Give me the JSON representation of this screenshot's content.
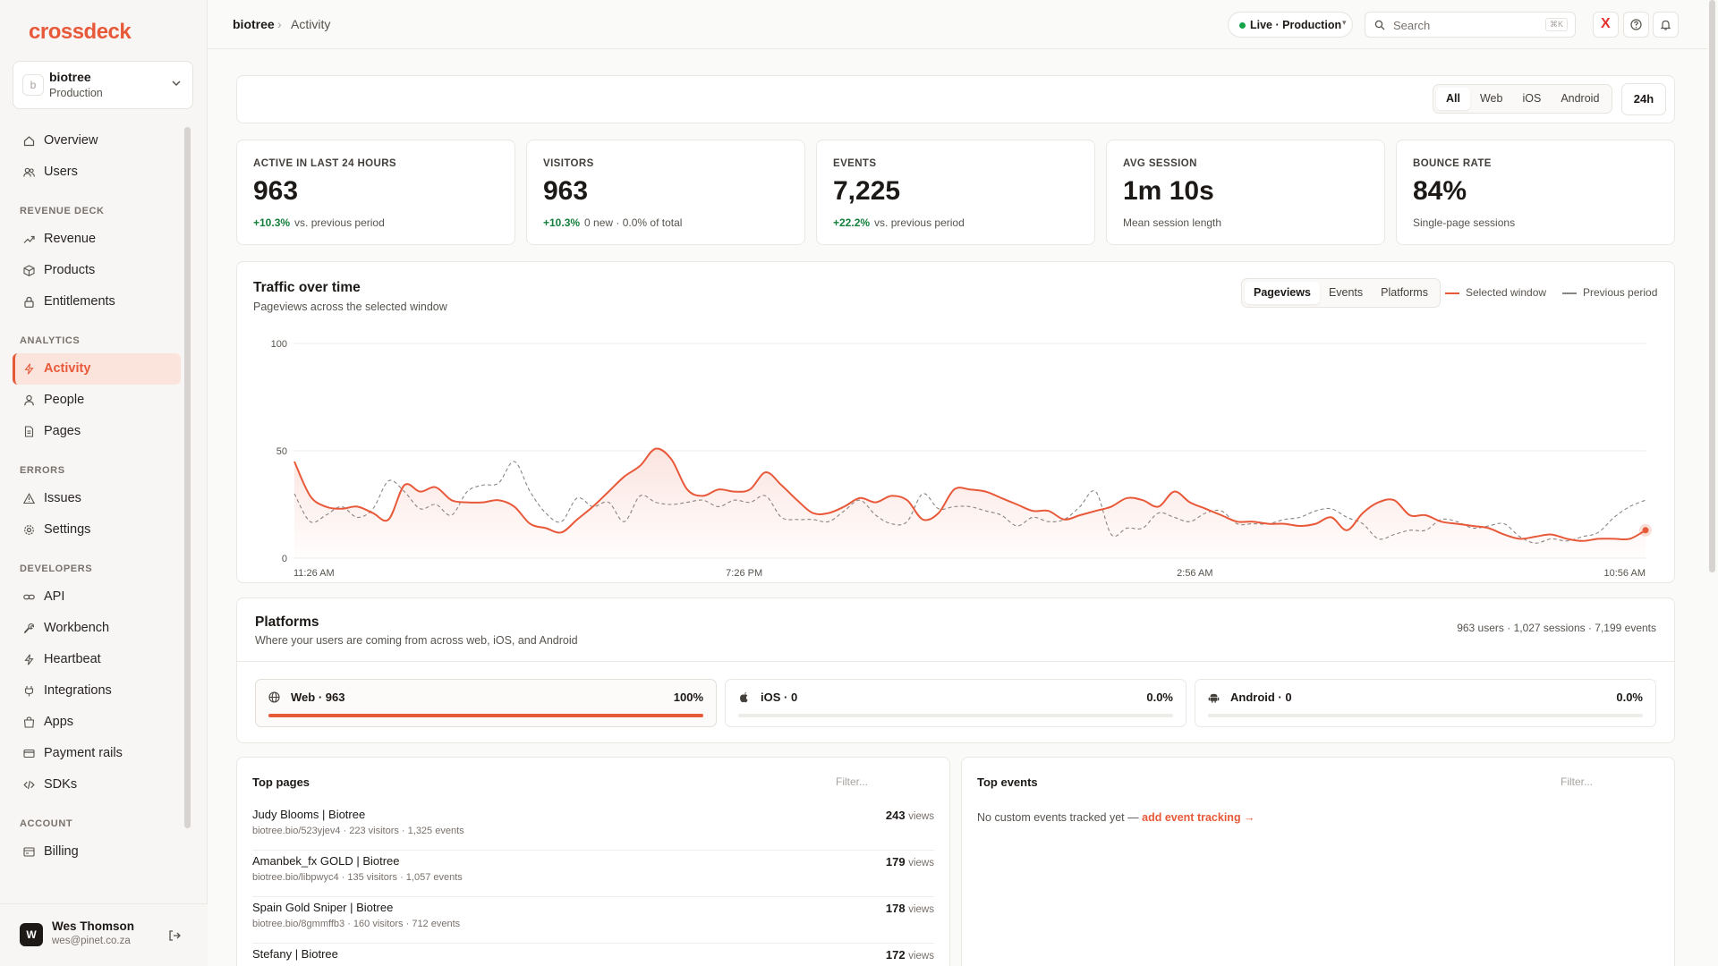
{
  "brand": {
    "name": "crossdeck",
    "accent": "#e8593a"
  },
  "workspace": {
    "avatar": "b",
    "name": "biotree",
    "env": "Production"
  },
  "sidebar": {
    "items_main": [
      {
        "label": "Overview",
        "icon": "home-icon"
      },
      {
        "label": "Users",
        "icon": "users-icon"
      }
    ],
    "sections": [
      {
        "title": "REVENUE DECK",
        "items": [
          {
            "label": "Revenue",
            "icon": "trend-icon"
          },
          {
            "label": "Products",
            "icon": "box-icon"
          },
          {
            "label": "Entitlements",
            "icon": "lock-icon"
          }
        ]
      },
      {
        "title": "ANALYTICS",
        "items": [
          {
            "label": "Activity",
            "icon": "bolt-icon",
            "active": true
          },
          {
            "label": "People",
            "icon": "person-icon"
          },
          {
            "label": "Pages",
            "icon": "file-icon"
          }
        ]
      },
      {
        "title": "ERRORS",
        "items": [
          {
            "label": "Issues",
            "icon": "warning-icon"
          },
          {
            "label": "Settings",
            "icon": "gear-icon"
          }
        ]
      },
      {
        "title": "DEVELOPERS",
        "items": [
          {
            "label": "API",
            "icon": "link-icon"
          },
          {
            "label": "Workbench",
            "icon": "wrench-icon"
          },
          {
            "label": "Heartbeat",
            "icon": "bolt-icon"
          },
          {
            "label": "Integrations",
            "icon": "plug-icon"
          },
          {
            "label": "Apps",
            "icon": "bag-icon"
          },
          {
            "label": "Payment rails",
            "icon": "card-icon"
          },
          {
            "label": "SDKs",
            "icon": "code-icon"
          }
        ]
      },
      {
        "title": "ACCOUNT",
        "items": [
          {
            "label": "Billing",
            "icon": "billing-icon"
          }
        ]
      }
    ]
  },
  "user": {
    "initial": "W",
    "name": "Wes Thomson",
    "email": "wes@pinet.co.za"
  },
  "header": {
    "breadcrumb": [
      "biotree",
      "Activity"
    ],
    "env_label": "Live · Production",
    "search_placeholder": "Search",
    "search_shortcut": "⌘K"
  },
  "filters": {
    "platforms": [
      "All",
      "Web",
      "iOS",
      "Android"
    ],
    "selected": "All",
    "range": "24h"
  },
  "stats": [
    {
      "label": "ACTIVE IN LAST 24 HOURS",
      "value": "963",
      "delta": "+10.3%",
      "note": "vs. previous period"
    },
    {
      "label": "VISITORS",
      "value": "963",
      "delta": "+10.3%",
      "note": "0 new · 0.0% of total"
    },
    {
      "label": "EVENTS",
      "value": "7,225",
      "delta": "+22.2%",
      "note": "vs. previous period"
    },
    {
      "label": "AVG SESSION",
      "value": "1m 10s",
      "delta": "",
      "note": "Mean session length"
    },
    {
      "label": "BOUNCE RATE",
      "value": "84%",
      "delta": "",
      "note": "Single-page sessions"
    }
  ],
  "traffic": {
    "title": "Traffic over time",
    "subtitle": "Pageviews across the selected window",
    "tabs": [
      "Pageviews",
      "Events",
      "Platforms"
    ],
    "selected_tab": "Pageviews",
    "legend": [
      "Selected window",
      "Previous period"
    ]
  },
  "chart_data": {
    "type": "area",
    "y_ticks": [
      100,
      50,
      0
    ],
    "ylim": [
      0,
      100
    ],
    "x_tick_labels": [
      "11:26 AM",
      "7:26 PM",
      "2:56 AM",
      "10:56 AM"
    ],
    "series": [
      {
        "name": "Selected window",
        "color": "#e8593a",
        "values": [
          45,
          29,
          24,
          23,
          24,
          21,
          18,
          34,
          31,
          33,
          27,
          26,
          26,
          27,
          24,
          16,
          14,
          12,
          18,
          24,
          31,
          38,
          43,
          51,
          46,
          32,
          29,
          32,
          31,
          32,
          40,
          34,
          27,
          21,
          21,
          24,
          28,
          26,
          29,
          27,
          18,
          21,
          32,
          32,
          31,
          28,
          25,
          22,
          22,
          18,
          20,
          22,
          24,
          28,
          27,
          24,
          31,
          26,
          23,
          20,
          17,
          17,
          16,
          16,
          15,
          16,
          19,
          13,
          21,
          26,
          27,
          20,
          20,
          17,
          16,
          15,
          14,
          11,
          9,
          10,
          11,
          9,
          8,
          9,
          9,
          9,
          13
        ]
      },
      {
        "name": "Previous period",
        "color": "#8a8580",
        "values": [
          30,
          17,
          20,
          24,
          19,
          23,
          36,
          31,
          23,
          25,
          20,
          31,
          34,
          35,
          45,
          31,
          21,
          17,
          28,
          24,
          26,
          17,
          29,
          26,
          25,
          26,
          27,
          24,
          27,
          26,
          29,
          19,
          18,
          18,
          17,
          22,
          27,
          20,
          16,
          17,
          30,
          23,
          24,
          24,
          22,
          20,
          15,
          19,
          17,
          18,
          24,
          31,
          11,
          14,
          14,
          21,
          19,
          17,
          21,
          22,
          16,
          16,
          16,
          18,
          19,
          22,
          23,
          19,
          16,
          9,
          11,
          13,
          13,
          18,
          17,
          14,
          15,
          16,
          10,
          7,
          9,
          8,
          10,
          12,
          19,
          24,
          27
        ]
      }
    ]
  },
  "platforms": {
    "title": "Platforms",
    "subtitle": "Where your users are coming from across web, iOS, and Android",
    "summary": "963 users · 1,027 sessions · 7,199 events",
    "items": [
      {
        "label": "Web · 963",
        "pct": "100%",
        "share": 1.0,
        "icon": "globe-icon"
      },
      {
        "label": "iOS · 0",
        "pct": "0.0%",
        "share": 0.0,
        "icon": "apple-icon"
      },
      {
        "label": "Android · 0",
        "pct": "0.0%",
        "share": 0.0,
        "icon": "android-icon"
      }
    ]
  },
  "top_pages": {
    "title": "Top pages",
    "filter_placeholder": "Filter...",
    "views_suffix": "views",
    "rows": [
      {
        "title": "Judy Blooms | Biotree",
        "meta": "biotree.bio/523yjev4 · 223 visitors · 1,325 events",
        "views": "243"
      },
      {
        "title": "Amanbek_fx GOLD | Biotree",
        "meta": "biotree.bio/libpwyc4 · 135 visitors · 1,057 events",
        "views": "179"
      },
      {
        "title": "Spain Gold Sniper | Biotree",
        "meta": "biotree.bio/8gmmffb3 · 160 visitors · 712 events",
        "views": "178"
      },
      {
        "title": "Stefany | Biotree",
        "meta": "",
        "views": "172"
      }
    ]
  },
  "top_events": {
    "title": "Top events",
    "filter_placeholder": "Filter...",
    "empty_text": "No custom events tracked yet —",
    "empty_link": "add event tracking →"
  }
}
